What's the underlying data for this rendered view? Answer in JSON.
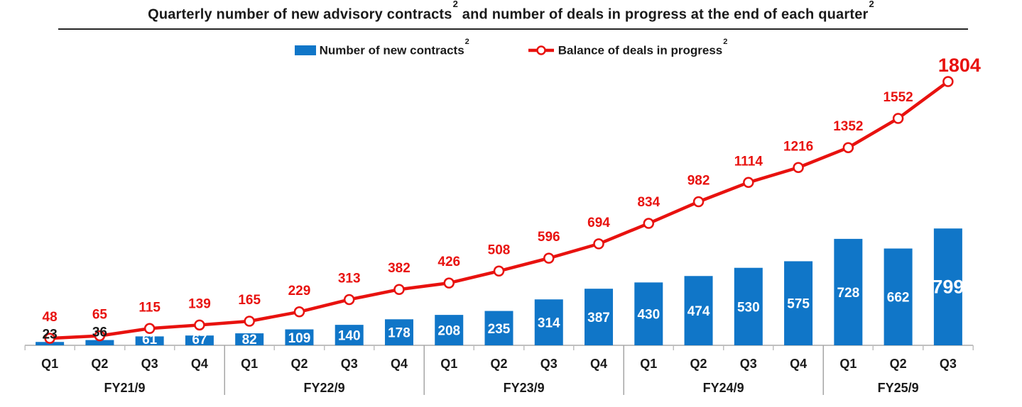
{
  "title": {
    "part1": "Quarterly number of new advisory contracts",
    "sup1": "2",
    "part2": " and number of deals in progress at the end of each quarter",
    "sup2": "2"
  },
  "legend": {
    "bars": {
      "label": "Number of new contracts",
      "sup": "2"
    },
    "line": {
      "label": "Balance of deals in progress",
      "sup": "2"
    }
  },
  "chart_data": {
    "type": "combo",
    "title": "Quarterly number of new advisory contracts and number of deals in progress at the end of each quarter",
    "categories": [
      "Q1",
      "Q2",
      "Q3",
      "Q4",
      "Q1",
      "Q2",
      "Q3",
      "Q4",
      "Q1",
      "Q2",
      "Q3",
      "Q4",
      "Q1",
      "Q2",
      "Q3",
      "Q4",
      "Q1",
      "Q2",
      "Q3"
    ],
    "group_axis": [
      {
        "label": "FY21/9",
        "count": 4
      },
      {
        "label": "FY22/9",
        "count": 4
      },
      {
        "label": "FY23/9",
        "count": 4
      },
      {
        "label": "FY24/9",
        "count": 4
      },
      {
        "label": "FY25/9",
        "count": 3
      }
    ],
    "series": [
      {
        "name": "Number of new contracts",
        "type": "bar",
        "color": "#1076c8",
        "label_color_inside": "#ffffff",
        "label_color_outside": "#1a1a1a",
        "emphasize_last": true,
        "values": [
          23,
          36,
          61,
          67,
          82,
          109,
          140,
          178,
          208,
          235,
          314,
          387,
          430,
          474,
          530,
          575,
          728,
          662,
          799
        ]
      },
      {
        "name": "Balance of deals in progress",
        "type": "line",
        "color": "#e8120f",
        "marker": "circle-white-fill",
        "emphasize_last": true,
        "values": [
          48,
          65,
          115,
          139,
          165,
          229,
          313,
          382,
          426,
          508,
          596,
          694,
          834,
          982,
          1114,
          1216,
          1352,
          1552,
          1804
        ]
      }
    ],
    "ylim": [
      0,
      1900
    ],
    "grid": "off",
    "y_axis_visible": false,
    "data_labels": "all",
    "legend_position": "top",
    "axis_color": "#bfbfbf",
    "separator_color": "#a6a6a6"
  }
}
